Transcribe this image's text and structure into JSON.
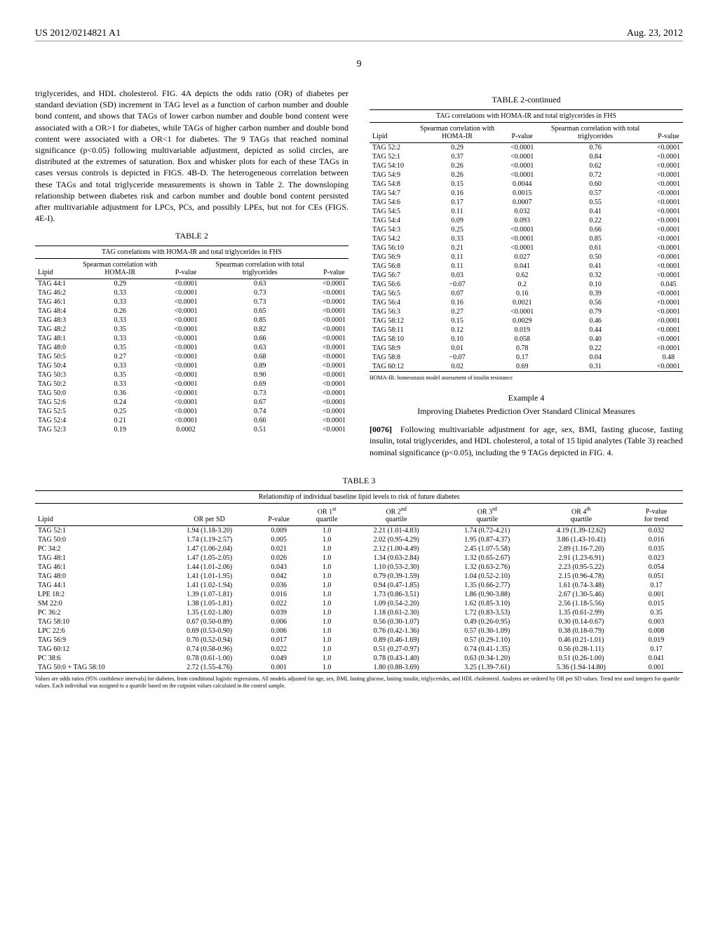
{
  "header": {
    "left": "US 2012/0214821 A1",
    "right": "Aug. 23, 2012"
  },
  "pageNumber": "9",
  "leftCol": {
    "paragraph1": "triglycerides, and HDL cholesterol. FIG. 4A depicts the odds ratio (OR) of diabetes per standard deviation (SD) increment in TAG level as a function of carbon number and double bond content, and shows that TAGs of lower carbon number and double bond content were associated with a OR>1 for diabetes, while TAGs of higher carbon number and double bond content were associated with a OR<1 for diabetes. The 9 TAGs that reached nominal significance (p<0.05) following multivariable adjustment, depicted as solid circles, are distributed at the extremes of saturation. Box and whisker plots for each of these TAGs in cases versus controls is depicted in FIGS. 4B-D. The heterogeneous correlation between these TAGs and total triglyceride measurements is shown in Table 2. The downsloping relationship between diabetes risk and carbon number and double bond content persisted after multivariable adjustment for LPCs, PCs, and possibly LPEs, but not for CEs (FIGS. 4E-I)."
  },
  "table2": {
    "title": "TABLE 2",
    "contTitle": "TABLE 2-continued",
    "subtitle": "TAG correlations with HOMA-IR and total triglycerides in FHS",
    "headers": [
      "Lipid",
      "Spearman correlation with HOMA-IR",
      "P-value",
      "Spearman correlation with total triglycerides",
      "P-value"
    ],
    "rowsLeft": [
      [
        "TAG 44:1",
        "0.29",
        "<0.0001",
        "0.63",
        "<0.0001"
      ],
      [
        "TAG 46:2",
        "0.33",
        "<0.0001",
        "0.73",
        "<0.0001"
      ],
      [
        "TAG 46:1",
        "0.33",
        "<0.0001",
        "0.73",
        "<0.0001"
      ],
      [
        "TAG 48:4",
        "0.26",
        "<0.0001",
        "0.65",
        "<0.0001"
      ],
      [
        "TAG 48:3",
        "0.33",
        "<0.0001",
        "0.85",
        "<0.0001"
      ],
      [
        "TAG 48:2",
        "0.35",
        "<0.0001",
        "0.82",
        "<0.0001"
      ],
      [
        "TAG 48:1",
        "0.33",
        "<0.0001",
        "0.66",
        "<0.0001"
      ],
      [
        "TAG 48:0",
        "0.35",
        "<0.0001",
        "0.63",
        "<0.0001"
      ],
      [
        "TAG 50:5",
        "0.27",
        "<0.0001",
        "0.68",
        "<0.0001"
      ],
      [
        "TAG 50:4",
        "0.33",
        "<0.0001",
        "0.89",
        "<0.0001"
      ],
      [
        "TAG 50:3",
        "0.35",
        "<0.0001",
        "0.90",
        "<0.0001"
      ],
      [
        "TAG 50:2",
        "0.33",
        "<0.0001",
        "0.69",
        "<0.0001"
      ],
      [
        "TAG 50:0",
        "0.36",
        "<0.0001",
        "0.73",
        "<0.0001"
      ],
      [
        "TAG 52:6",
        "0.24",
        "<0.0001",
        "0.67",
        "<0.0001"
      ],
      [
        "TAG 52:5",
        "0.25",
        "<0.0001",
        "0.74",
        "<0.0001"
      ],
      [
        "TAG 52:4",
        "0.21",
        "<0.0001",
        "0.66",
        "<0.0001"
      ],
      [
        "TAG 52:3",
        "0.19",
        "0.0002",
        "0.51",
        "<0.0001"
      ]
    ],
    "rowsRight": [
      [
        "TAG 52:2",
        "0.29",
        "<0.0001",
        "0.76",
        "<0.0001"
      ],
      [
        "TAG 52:1",
        "0.37",
        "<0.0001",
        "0.84",
        "<0.0001"
      ],
      [
        "TAG 54:10",
        "0.26",
        "<0.0001",
        "0.62",
        "<0.0001"
      ],
      [
        "TAG 54:9",
        "0.26",
        "<0.0001",
        "0.72",
        "<0.0001"
      ],
      [
        "TAG 54:8",
        "0.15",
        "0.0044",
        "0.60",
        "<0.0001"
      ],
      [
        "TAG 54:7",
        "0.16",
        "0.0015",
        "0.57",
        "<0.0001"
      ],
      [
        "TAG 54:6",
        "0.17",
        "0.0007",
        "0.55",
        "<0.0001"
      ],
      [
        "TAG 54:5",
        "0.11",
        "0.032",
        "0.41",
        "<0.0001"
      ],
      [
        "TAG 54:4",
        "0.09",
        "0.093",
        "0.22",
        "<0.0001"
      ],
      [
        "TAG 54:3",
        "0.25",
        "<0.0001",
        "0.66",
        "<0.0001"
      ],
      [
        "TAG 54:2",
        "0.33",
        "<0.0001",
        "0.85",
        "<0.0001"
      ],
      [
        "TAG 56:10",
        "0.21",
        "<0.0001",
        "0.61",
        "<0.0001"
      ],
      [
        "TAG 56:9",
        "0.11",
        "0.027",
        "0.50",
        "<0.0001"
      ],
      [
        "TAG 56:8",
        "0.11",
        "0.041",
        "0.41",
        "<0.0001"
      ],
      [
        "TAG 56:7",
        "0.03",
        "0.62",
        "0.32",
        "<0.0001"
      ],
      [
        "TAG 56:6",
        "−0.07",
        "0.2",
        "0.10",
        "0.045"
      ],
      [
        "TAG 56:5",
        "0.07",
        "0.16",
        "0.39",
        "<0.0001"
      ],
      [
        "TAG 56:4",
        "0.16",
        "0.0021",
        "0.56",
        "<0.0001"
      ],
      [
        "TAG 56:3",
        "0.27",
        "<0.0001",
        "0.79",
        "<0.0001"
      ],
      [
        "TAG 58:12",
        "0.15",
        "0.0029",
        "0.46",
        "<0.0001"
      ],
      [
        "TAG 58:11",
        "0.12",
        "0.019",
        "0.44",
        "<0.0001"
      ],
      [
        "TAG 58:10",
        "0.10",
        "0.058",
        "0.40",
        "<0.0001"
      ],
      [
        "TAG 58:9",
        "0.01",
        "0.78",
        "0.22",
        "<0.0001"
      ],
      [
        "TAG 58:8",
        "−0.07",
        "0.17",
        "0.04",
        "0.48"
      ],
      [
        "TAG 60:12",
        "0.02",
        "0.69",
        "0.31",
        "<0.0001"
      ]
    ],
    "footnote": "HOMA-IR: homeostasis model assessment of insulin resistance"
  },
  "example4": {
    "label": "Example 4",
    "title": "Improving Diabetes Prediction Over Standard Clinical Measures",
    "paraNum": "[0076]",
    "paraText": "Following multivariable adjustment for age, sex, BMI, fasting glucose, fasting insulin, total triglycerides, and HDL cholesterol, a total of 15 lipid analytes (Table 3) reached nominal significance (p<0.05), including the 9 TAGs depicted in FIG. 4."
  },
  "table3": {
    "title": "TABLE 3",
    "subtitle": "Relationship of individual baseline lipid levels to risk of future diabetes",
    "rows": [
      [
        "TAG 52:1",
        "1.94 (1.18-3.20)",
        "0.009",
        "1.0",
        "2.21 (1.01-4.83)",
        "1.74 (0.72-4.21)",
        "4.19 (1.39-12.62)",
        "0.032"
      ],
      [
        "TAG 50:0",
        "1.74 (1.19-2.57)",
        "0.005",
        "1.0",
        "2.02 (0.95-4.29)",
        "1.95 (0.87-4.37)",
        "3.86 (1.43-10.41)",
        "0.016"
      ],
      [
        "PC 34:2",
        "1.47 (1.06-2.04)",
        "0.021",
        "1.0",
        "2.12 (1.00-4.49)",
        "2.45 (1.07-5.58)",
        "2.89 (1.16-7.20)",
        "0.035"
      ],
      [
        "TAG 48:1",
        "1.47 (1.05-2.05)",
        "0.026",
        "1.0",
        "1.34 (0.63-2.84)",
        "1.32 (0.65-2.67)",
        "2.91 (1.23-6.91)",
        "0.023"
      ],
      [
        "TAG 46:1",
        "1.44 (1.01-2.06)",
        "0.043",
        "1.0",
        "1.10 (0.53-2.30)",
        "1.32 (0.63-2.76)",
        "2.23 (0.95-5.22)",
        "0.054"
      ],
      [
        "TAG 48:0",
        "1.41 (1.01-1.95)",
        "0.042",
        "1.0",
        "0.79 (0.39-1.59)",
        "1.04 (0.52-2.10)",
        "2.15 (0.96-4.78)",
        "0.051"
      ],
      [
        "TAG 44:1",
        "1.41 (1.02-1.94)",
        "0.036",
        "1.0",
        "0.94 (0.47-1.85)",
        "1.35 (0.66-2.77)",
        "1.61 (0.74-3.48)",
        "0.17"
      ],
      [
        "LPE 18:2",
        "1.39 (1.07-1.81)",
        "0.016",
        "1.0",
        "1.73 (0.86-3.51)",
        "1.86 (0.90-3.88)",
        "2.67 (1.30-5.46)",
        "0.001"
      ],
      [
        "SM 22:0",
        "1.38 (1.05-1.81)",
        "0.022",
        "1.0",
        "1.09 (0.54-2.20)",
        "1.62 (0.85-3.10)",
        "2.56 (1.18-5.56)",
        "0.015"
      ],
      [
        "PC 36:2",
        "1.35 (1.02-1.80)",
        "0.039",
        "1.0",
        "1.18 (0.61-2.30)",
        "1.72 (0.83-3.53)",
        "1.35 (0.61-2.99)",
        "0.35"
      ],
      [
        "TAG 58:10",
        "0.67 (0.50-0.89)",
        "0.006",
        "1.0",
        "0.56 (0.30-1.07)",
        "0.49 (0.26-0.95)",
        "0.30 (0.14-0.67)",
        "0.003"
      ],
      [
        "LPC 22:6",
        "0.69 (0.53-0.90)",
        "0.006",
        "1.0",
        "0.76 (0.42-1.36)",
        "0.57 (0.30-1.09)",
        "0.38 (0.18-0.79)",
        "0.008"
      ],
      [
        "TAG 56:9",
        "0.70 (0.52-0.94)",
        "0.017",
        "1.0",
        "0.89 (0.46-1.69)",
        "0.57 (0.29-1.10)",
        "0.46 (0.21-1.01)",
        "0.019"
      ],
      [
        "TAG 60:12",
        "0.74 (0.58-0.96)",
        "0.022",
        "1.0",
        "0.51 (0.27-0.97)",
        "0.74 (0.41-1.35)",
        "0.56 (0.28-1.11)",
        "0.17"
      ],
      [
        "PC 38:6",
        "0.78 (0.61-1.00)",
        "0.049",
        "1.0",
        "0.78 (0.43-1.40)",
        "0.63 (0.34-1.20)",
        "0.51 (0.26-1.00)",
        "0.041"
      ],
      [
        "TAG 50:0 + TAG 58:10",
        "2.72 (1.55-4.76)",
        "0.001",
        "1.0",
        "1.80 (0.88-3.69)",
        "3.25 (1.39-7.61)",
        "5.36 (1.94-14.80)",
        "0.001"
      ]
    ],
    "footnote": "Values are odds ratios (95% confidence intervals) for diabetes, from conditional logistic regressions. All models adjusted for age, sex, BMI, fasting glucose, fasting insulin, triglycerides, and HDL cholesterol. Analytes are ordered by OR per SD values. Trend test used integers for quartile values. Each individual was assigned to a quartile based on the cutpoint values calculated in the control sample."
  }
}
